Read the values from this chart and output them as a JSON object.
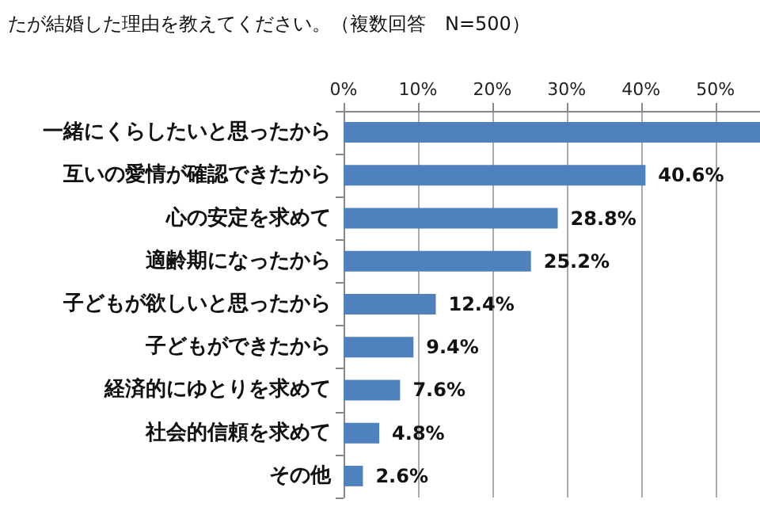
{
  "chart_data": {
    "type": "bar",
    "orientation": "horizontal",
    "title": "たが結婚した理由を教えてください。（複数回答　N=500）",
    "categories": [
      "一緒にくらしたいと思ったから",
      "互いの愛情が確認できたから",
      "心の安定を求めて",
      "適齢期になったから",
      "子どもが欲しいと思ったから",
      "子どもができたから",
      "経済的にゆとりを求めて",
      "社会的信頼を求めて",
      "その他"
    ],
    "values": [
      56,
      40.6,
      28.8,
      25.2,
      12.4,
      9.4,
      7.6,
      4.8,
      2.6
    ],
    "value_labels": [
      null,
      "40.6%",
      "28.8%",
      "25.2%",
      "12.4%",
      "9.4%",
      "7.6%",
      "4.8%",
      "2.6%"
    ],
    "color": "#4f81bd",
    "xlim": [
      0,
      56
    ],
    "xticks": [
      {
        "value": 0,
        "label": "0%"
      },
      {
        "value": 10,
        "label": "10%"
      },
      {
        "value": 20,
        "label": "20%"
      },
      {
        "value": 30,
        "label": "30%"
      },
      {
        "value": 40,
        "label": "40%"
      },
      {
        "value": 50,
        "label": "50%"
      }
    ],
    "grid": "x"
  }
}
